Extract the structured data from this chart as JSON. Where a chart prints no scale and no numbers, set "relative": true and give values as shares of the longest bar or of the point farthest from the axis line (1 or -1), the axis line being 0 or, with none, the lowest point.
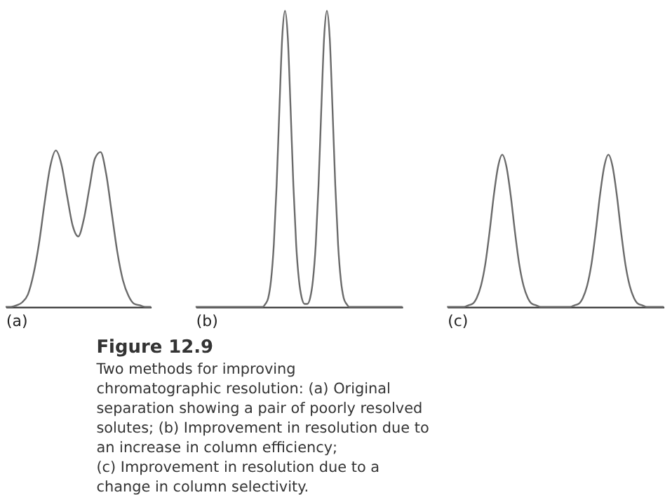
{
  "chart_data": [
    {
      "type": "line",
      "relative": true,
      "xlabel": "(a)",
      "categories": [
        null,
        null,
        null,
        null,
        null,
        null,
        null,
        null,
        null,
        null,
        null,
        null,
        null,
        null,
        null,
        null,
        null,
        null,
        null,
        null,
        null,
        null,
        null,
        null,
        null,
        null,
        null
      ],
      "series": [
        {
          "color": "#6a6a6a",
          "values": [
            0,
            0,
            0.01,
            0.03,
            0.08,
            0.21,
            0.41,
            0.67,
            0.9,
            1,
            0.91,
            0.71,
            0.52,
            0.45,
            0.56,
            0.76,
            0.95,
            0.99,
            0.85,
            0.6,
            0.35,
            0.17,
            0.07,
            0.02,
            0.01,
            0,
            0
          ]
        }
      ]
    },
    {
      "type": "line",
      "relative": true,
      "xlabel": "(b)",
      "categories": [
        null,
        null,
        null,
        null,
        null,
        null,
        null,
        null,
        null,
        null,
        null,
        null,
        null,
        null,
        null,
        null,
        null,
        null,
        null,
        null,
        null,
        null,
        null,
        null,
        null,
        null,
        null,
        null,
        null,
        null,
        null,
        null,
        null,
        null,
        null,
        null,
        null,
        null,
        null,
        null,
        null,
        null,
        null,
        null,
        null,
        null,
        null,
        null,
        null,
        null,
        null,
        null,
        null,
        null,
        null,
        null,
        null,
        null,
        null,
        null,
        null,
        null,
        null,
        null,
        null,
        null,
        null,
        null,
        null,
        null,
        null,
        null,
        null,
        null,
        null
      ],
      "series": [
        {
          "color": "#6a6a6a",
          "values": [
            0,
            0,
            0,
            0,
            0,
            0,
            0,
            0,
            0,
            0,
            0,
            0,
            0,
            0,
            0,
            0,
            0,
            0,
            0,
            0,
            0,
            0,
            0,
            0,
            0,
            0.01,
            0.03,
            0.09,
            0.21,
            0.41,
            0.67,
            0.91,
            1,
            0.91,
            0.67,
            0.41,
            0.21,
            0.09,
            0.03,
            0.01,
            0.01,
            0.03,
            0.09,
            0.21,
            0.41,
            0.67,
            0.91,
            1,
            0.91,
            0.67,
            0.41,
            0.21,
            0.09,
            0.03,
            0.01,
            0,
            0,
            0,
            0,
            0,
            0,
            0,
            0,
            0,
            0,
            0,
            0,
            0,
            0,
            0,
            0,
            0,
            0,
            0,
            0
          ]
        }
      ]
    },
    {
      "type": "line",
      "relative": true,
      "xlabel": "(c)",
      "categories": [
        null,
        null,
        null,
        null,
        null,
        null,
        null,
        null,
        null,
        null,
        null,
        null,
        null,
        null,
        null,
        null,
        null,
        null,
        null,
        null,
        null,
        null,
        null,
        null,
        null,
        null,
        null,
        null,
        null,
        null,
        null,
        null,
        null,
        null,
        null,
        null,
        null,
        null,
        null,
        null,
        null,
        null,
        null,
        null,
        null,
        null,
        null,
        null,
        null,
        null,
        null,
        null
      ],
      "series": [
        {
          "color": "#6a6a6a",
          "values": [
            0,
            0,
            0,
            0,
            0,
            0.01,
            0.02,
            0.06,
            0.14,
            0.28,
            0.49,
            0.73,
            0.92,
            1,
            0.92,
            0.73,
            0.49,
            0.28,
            0.14,
            0.06,
            0.02,
            0.01,
            0,
            0,
            0,
            0,
            0,
            0,
            0,
            0,
            0.01,
            0.02,
            0.06,
            0.14,
            0.28,
            0.49,
            0.73,
            0.92,
            1,
            0.92,
            0.73,
            0.49,
            0.28,
            0.14,
            0.06,
            0.02,
            0.01,
            0,
            0,
            0,
            0,
            0
          ]
        }
      ]
    },
    {
      "type": "other",
      "title": "Figure 12.9",
      "annotations": [
        "Two methods for improving",
        "chromatographic resolution: (a) Original",
        "separation showing a pair of poorly resolved",
        "solutes; (b) Improvement in resolution due to",
        "an increase in column efficiency;",
        "(c) Improvement in resolution due to a",
        "change in column selectivity."
      ]
    }
  ]
}
